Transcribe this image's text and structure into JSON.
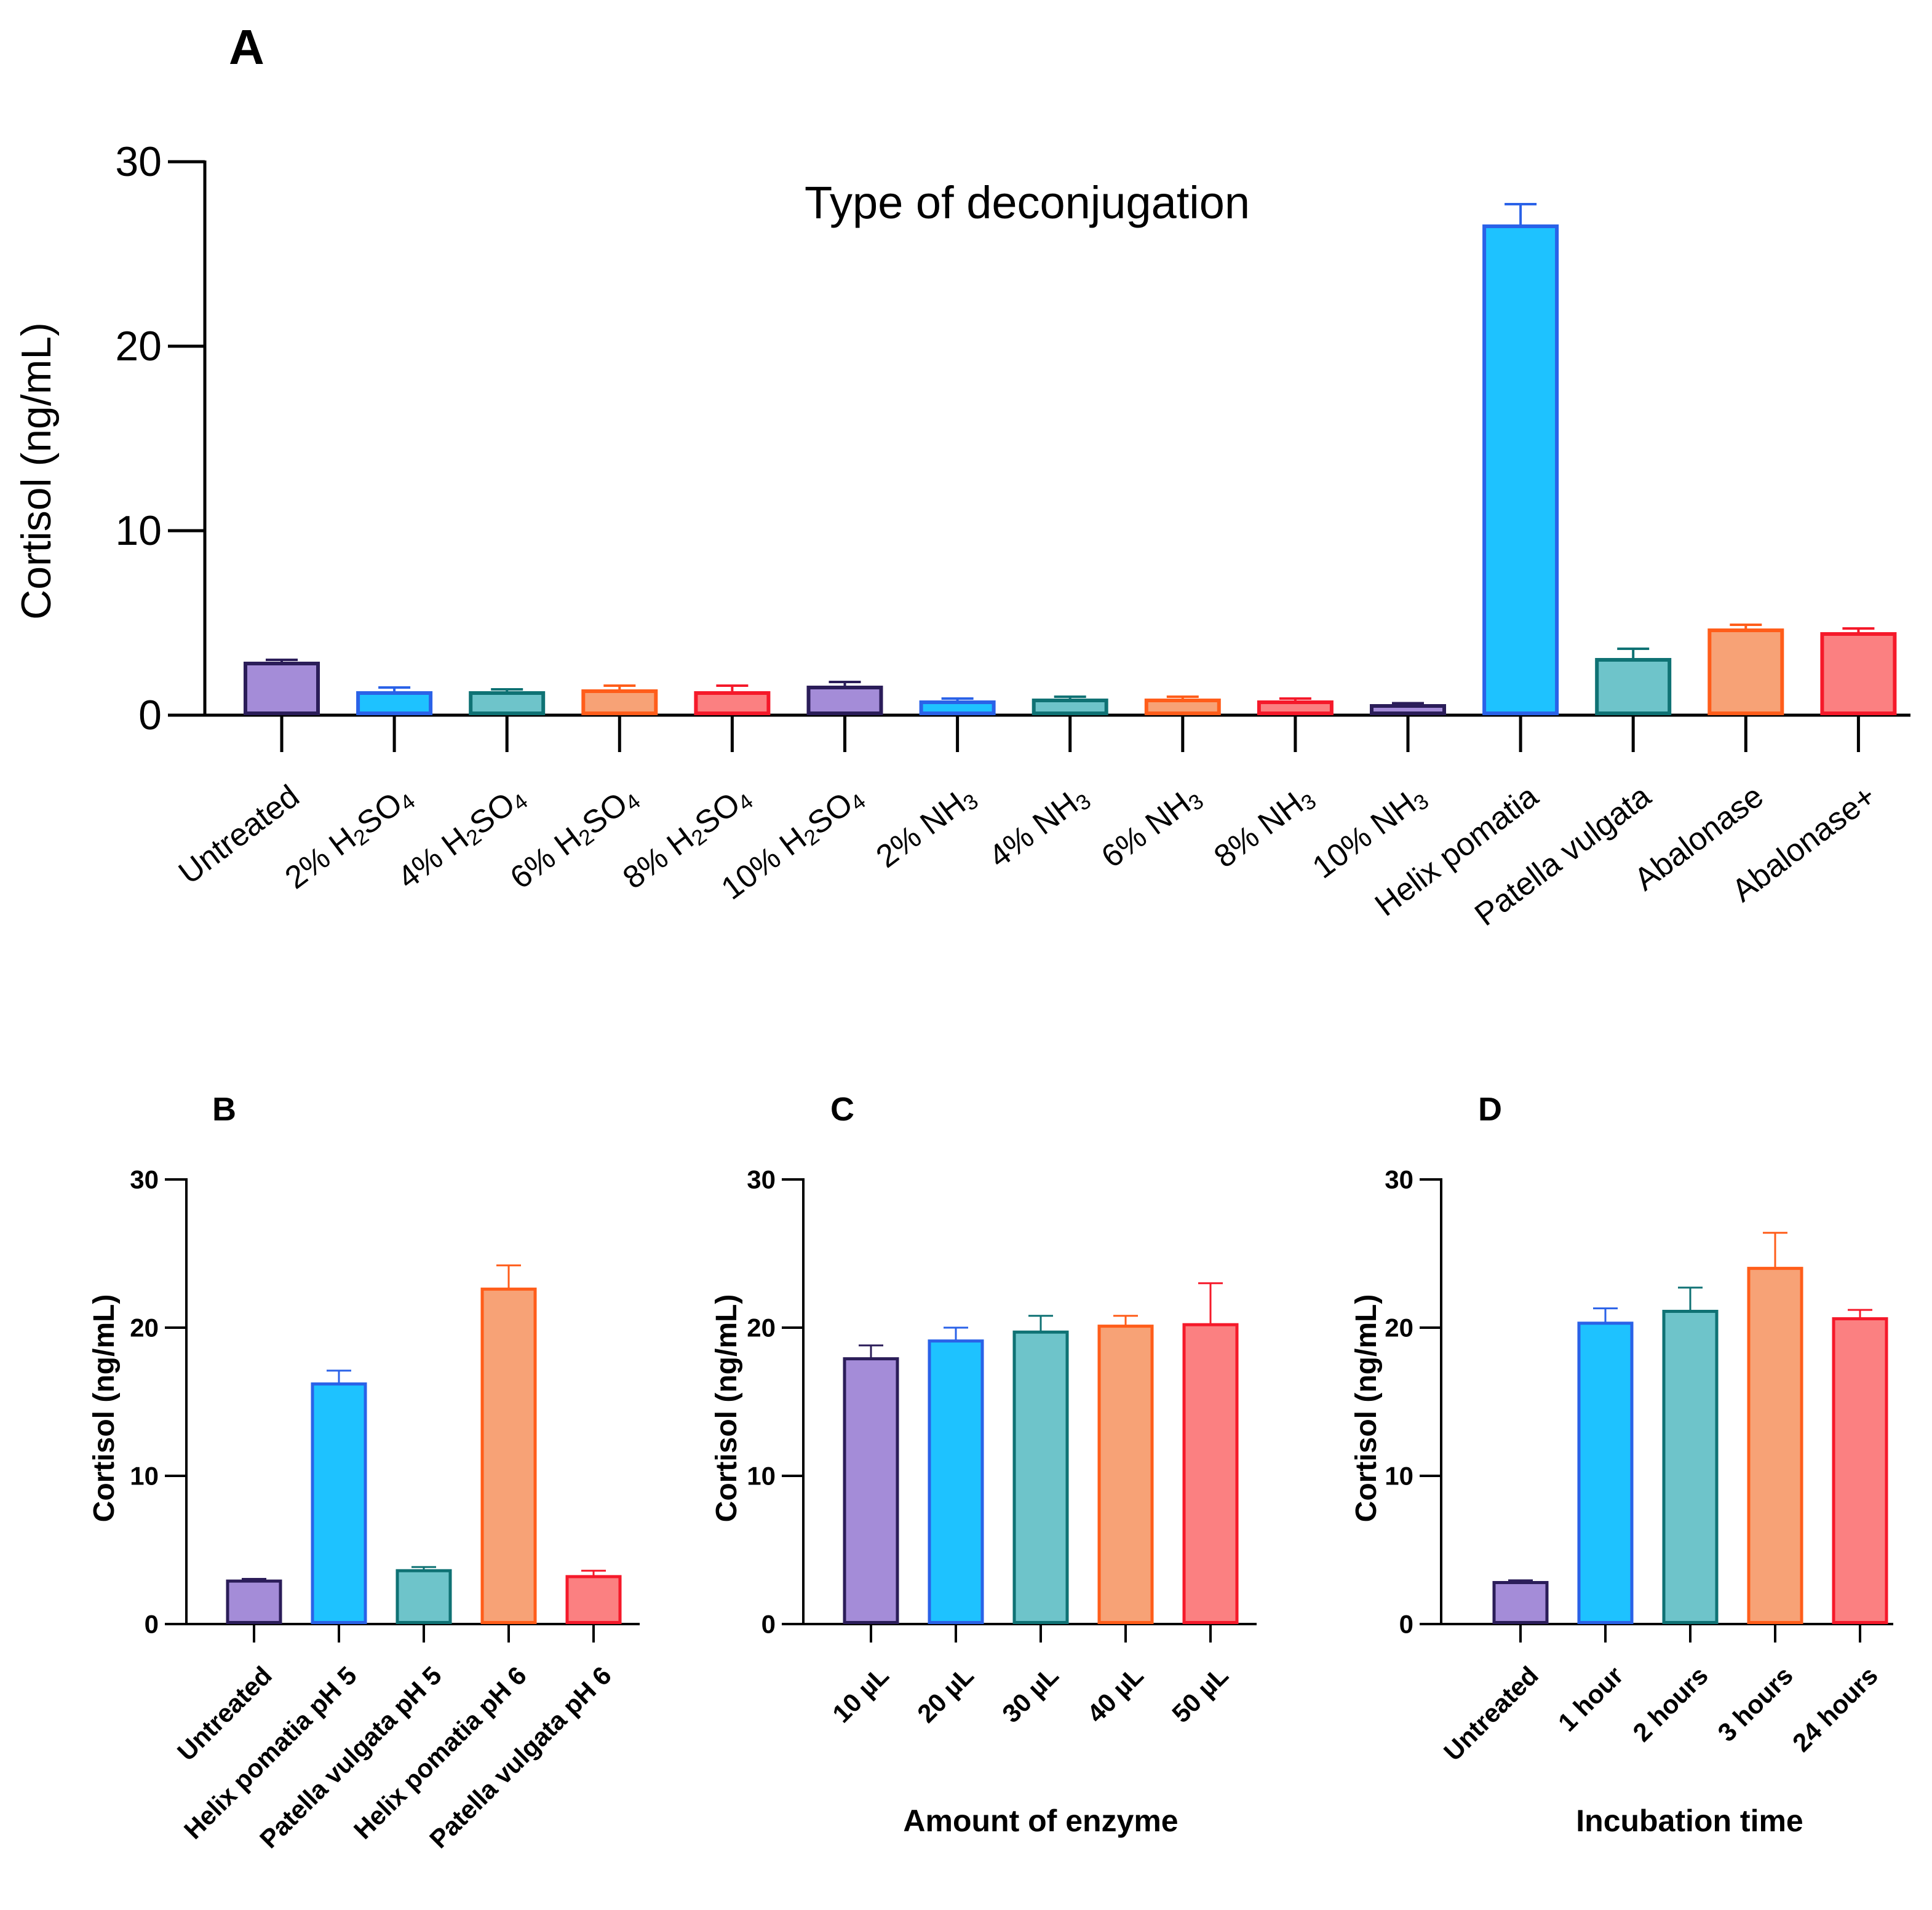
{
  "chart_data": [
    {
      "panel": "A",
      "type": "bar",
      "title": "Type of deconjugation",
      "xlabel": "",
      "ylabel": "Cortisol (ng/mL)",
      "ylim": [
        0,
        30
      ],
      "yticks": [
        "0",
        "10",
        "20",
        "30"
      ],
      "categories": [
        "Untreated",
        "2% H2SO4",
        "4% H2SO4",
        "6% H2SO4",
        "8% H2SO4",
        "10% H2SO4",
        "2% NH3",
        "4% NH3",
        "6% NH3",
        "8% NH3",
        "10% NH3",
        "Helix pomatia",
        "Patella vulgata",
        "Abalonase",
        "Abalonase+"
      ],
      "values": [
        2.8,
        1.2,
        1.2,
        1.3,
        1.2,
        1.5,
        0.7,
        0.8,
        0.8,
        0.7,
        0.5,
        26.5,
        3.0,
        4.6,
        4.4
      ],
      "errors": [
        0.2,
        0.3,
        0.2,
        0.3,
        0.4,
        0.3,
        0.2,
        0.2,
        0.2,
        0.2,
        0.15,
        1.2,
        0.6,
        0.3,
        0.3
      ],
      "fills": [
        "#a48cd8",
        "#1ec2ff",
        "#6ec4ca",
        "#f7a276",
        "#fb8081",
        "#a48cd8",
        "#1ec2ff",
        "#6ec4ca",
        "#f7a276",
        "#fb8081",
        "#a48cd8",
        "#1ec2ff",
        "#6ec4ca",
        "#f7a276",
        "#fb8081"
      ],
      "strokes": [
        "#2b1d59",
        "#2a62e8",
        "#0f7274",
        "#ff5d1a",
        "#f5192a",
        "#2b1d59",
        "#2a62e8",
        "#0f7274",
        "#ff5d1a",
        "#f5192a",
        "#2b1d59",
        "#2a62e8",
        "#0f7274",
        "#ff5d1a",
        "#f5192a"
      ]
    },
    {
      "panel": "B",
      "type": "bar",
      "title": "",
      "xlabel": "",
      "ylabel": "Cortisol (ng/mL)",
      "ylim": [
        0,
        30
      ],
      "yticks": [
        "0",
        "10",
        "20",
        "30"
      ],
      "categories": [
        "Untreated",
        "Helix pomatia pH 5",
        "Patella vulgata pH 5",
        "Helix pomatia pH 6",
        "Patella vulgata pH 6"
      ],
      "values": [
        2.9,
        16.2,
        3.6,
        22.6,
        3.2
      ],
      "errors": [
        0.15,
        0.9,
        0.25,
        1.6,
        0.4
      ],
      "fills": [
        "#a48cd8",
        "#1ec2ff",
        "#6ec4ca",
        "#f7a276",
        "#fb8081"
      ],
      "strokes": [
        "#2b1d59",
        "#2a62e8",
        "#0f7274",
        "#ff5d1a",
        "#f5192a"
      ]
    },
    {
      "panel": "C",
      "type": "bar",
      "title": "",
      "xlabel": "Amount of enzyme",
      "ylabel": "Cortisol (ng/mL)",
      "ylim": [
        0,
        30
      ],
      "yticks": [
        "0",
        "10",
        "20",
        "30"
      ],
      "categories": [
        "10 µL",
        "20 µL",
        "30 µL",
        "40 µL",
        "50 µL"
      ],
      "values": [
        17.9,
        19.1,
        19.7,
        20.1,
        20.2
      ],
      "errors": [
        0.9,
        0.9,
        1.1,
        0.7,
        2.8
      ],
      "fills": [
        "#a48cd8",
        "#1ec2ff",
        "#6ec4ca",
        "#f7a276",
        "#fb8081"
      ],
      "strokes": [
        "#2b1d59",
        "#2a62e8",
        "#0f7274",
        "#ff5d1a",
        "#f5192a"
      ]
    },
    {
      "panel": "D",
      "type": "bar",
      "title": "",
      "xlabel": "Incubation time",
      "ylabel": "Cortisol (ng/mL)",
      "ylim": [
        0,
        30
      ],
      "yticks": [
        "0",
        "10",
        "20",
        "30"
      ],
      "categories": [
        "Untreated",
        "1 hour",
        "2 hours",
        "3 hours",
        "24 hours"
      ],
      "values": [
        2.8,
        20.3,
        21.1,
        24.0,
        20.6
      ],
      "errors": [
        0.15,
        1.0,
        1.6,
        2.4,
        0.6
      ],
      "fills": [
        "#a48cd8",
        "#1ec2ff",
        "#6ec4ca",
        "#f7a276",
        "#fb8081"
      ],
      "strokes": [
        "#2b1d59",
        "#2a62e8",
        "#0f7274",
        "#ff5d1a",
        "#f5192a"
      ]
    }
  ]
}
